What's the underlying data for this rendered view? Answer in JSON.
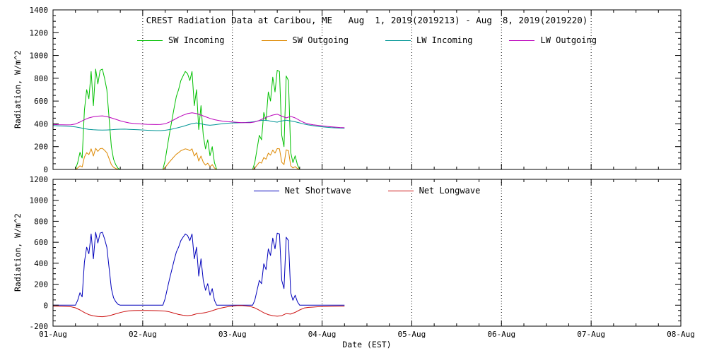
{
  "background": "#ffffff",
  "chart_data": [
    {
      "type": "line",
      "panel": "top",
      "title": "CREST Radiation Data at Caribou, ME   Aug  1, 2019(2019213) - Aug  8, 2019(2019220)",
      "ylabel": "Radiation, W/m^2",
      "ylim": [
        0,
        1400
      ],
      "ytick_interval": 200,
      "ytick_minor": 50,
      "xlim": [
        0,
        7
      ],
      "xtick_minor": 0.25,
      "x_unit": "days from 01-Aug-2019 00:00 EST",
      "x_tick_labels": [
        "01-Aug",
        "02-Aug",
        "03-Aug",
        "04-Aug",
        "05-Aug",
        "06-Aug",
        "07-Aug",
        "08-Aug"
      ],
      "grid": "vertical-dotted",
      "frame_color": "#000000",
      "legend_position": "top-center-inside",
      "series": [
        {
          "name": "SW Incoming",
          "color": "#00c000",
          "x_start": 0,
          "x_step": 0.025,
          "values": [
            0,
            0,
            0,
            0,
            0,
            0,
            0,
            0,
            0,
            0,
            0,
            60,
            150,
            100,
            520,
            700,
            620,
            860,
            560,
            880,
            750,
            870,
            880,
            800,
            700,
            450,
            200,
            90,
            40,
            10,
            0,
            0,
            0,
            0,
            0,
            0,
            0,
            0,
            0,
            0,
            0,
            0,
            0,
            0,
            0,
            0,
            0,
            0,
            0,
            0,
            80,
            200,
            320,
            430,
            540,
            640,
            700,
            780,
            820,
            860,
            840,
            780,
            860,
            560,
            700,
            350,
            560,
            300,
            180,
            260,
            120,
            200,
            60,
            0,
            0,
            0,
            0,
            0,
            0,
            0,
            0,
            0,
            0,
            0,
            0,
            0,
            0,
            0,
            0,
            0,
            60,
            180,
            300,
            260,
            500,
            430,
            680,
            600,
            810,
            680,
            870,
            860,
            300,
            200,
            820,
            780,
            150,
            60,
            120,
            40,
            0,
            0,
            0,
            0,
            0,
            0,
            0,
            0,
            0,
            0,
            0,
            0,
            0,
            0,
            0,
            0,
            0,
            0,
            0,
            0,
            0
          ]
        },
        {
          "name": "SW Outgoing",
          "color": "#dd8800",
          "x_start": 0,
          "x_step": 0.025,
          "values": [
            0,
            0,
            0,
            0,
            0,
            0,
            0,
            0,
            0,
            0,
            0,
            13,
            32,
            21,
            109,
            147,
            130,
            181,
            118,
            185,
            158,
            183,
            185,
            168,
            147,
            95,
            42,
            19,
            8,
            2,
            0,
            0,
            0,
            0,
            0,
            0,
            0,
            0,
            0,
            0,
            0,
            0,
            0,
            0,
            0,
            0,
            0,
            0,
            0,
            0,
            17,
            42,
            67,
            90,
            113,
            134,
            147,
            164,
            172,
            181,
            176,
            164,
            181,
            118,
            147,
            74,
            118,
            63,
            38,
            55,
            25,
            42,
            13,
            0,
            0,
            0,
            0,
            0,
            0,
            0,
            0,
            0,
            0,
            0,
            0,
            0,
            0,
            0,
            0,
            0,
            13,
            38,
            63,
            55,
            105,
            90,
            143,
            126,
            170,
            143,
            183,
            181,
            63,
            42,
            172,
            164,
            32,
            13,
            25,
            8,
            0,
            0,
            0,
            0,
            0,
            0,
            0,
            0,
            0,
            0,
            0,
            0,
            0,
            0,
            0,
            0,
            0,
            0,
            0,
            0,
            0
          ]
        },
        {
          "name": "LW Incoming",
          "color": "#009595",
          "x_start": 0,
          "x_step": 0.05,
          "values": [
            385,
            383,
            381,
            379,
            377,
            373,
            366,
            358,
            352,
            348,
            346,
            345,
            346,
            348,
            351,
            353,
            354,
            352,
            350,
            348,
            346,
            344,
            342,
            341,
            341,
            344,
            350,
            358,
            368,
            378,
            390,
            402,
            408,
            400,
            392,
            388,
            392,
            397,
            402,
            406,
            408,
            409,
            410,
            412,
            415,
            420,
            428,
            432,
            428,
            420,
            415,
            425,
            432,
            426,
            418,
            408,
            398,
            390,
            384,
            378,
            374,
            370,
            367,
            365,
            363,
            362
          ]
        },
        {
          "name": "LW Outgoing",
          "color": "#bb00bb",
          "x_start": 0,
          "x_step": 0.05,
          "values": [
            395,
            393,
            392,
            391,
            392,
            399,
            416,
            436,
            452,
            462,
            468,
            470,
            464,
            452,
            440,
            427,
            416,
            408,
            403,
            400,
            398,
            396,
            395,
            394,
            395,
            401,
            416,
            437,
            458,
            476,
            490,
            497,
            490,
            477,
            462,
            448,
            437,
            429,
            423,
            419,
            416,
            413,
            411,
            410,
            411,
            417,
            430,
            448,
            464,
            477,
            485,
            468,
            452,
            466,
            452,
            430,
            411,
            399,
            392,
            387,
            382,
            378,
            374,
            371,
            368,
            366
          ]
        }
      ]
    },
    {
      "type": "line",
      "panel": "bottom",
      "ylabel": "Radiation, W/m^2",
      "xlabel": "Date (EST)",
      "ylim": [
        -200,
        1200
      ],
      "ytick_interval": 200,
      "ytick_minor": 50,
      "xlim": [
        0,
        7
      ],
      "xtick_minor": 0.25,
      "x_unit": "days from 01-Aug-2019 00:00 EST",
      "x_tick_labels": [
        "01-Aug",
        "02-Aug",
        "03-Aug",
        "04-Aug",
        "05-Aug",
        "06-Aug",
        "07-Aug",
        "08-Aug"
      ],
      "grid": "vertical-dotted",
      "frame_color": "#000000",
      "legend_position": "top-center-inside",
      "series": [
        {
          "name": "Net Shortwave",
          "color": "#0000bb",
          "x_start": 0,
          "x_step": 0.025,
          "values": [
            0,
            0,
            0,
            0,
            0,
            0,
            0,
            0,
            0,
            0,
            0,
            47,
            119,
            79,
            411,
            553,
            490,
            679,
            442,
            695,
            593,
            687,
            695,
            632,
            553,
            356,
            158,
            71,
            32,
            8,
            0,
            0,
            0,
            0,
            0,
            0,
            0,
            0,
            0,
            0,
            0,
            0,
            0,
            0,
            0,
            0,
            0,
            0,
            0,
            0,
            63,
            158,
            253,
            340,
            427,
            506,
            553,
            616,
            648,
            679,
            664,
            616,
            679,
            442,
            553,
            277,
            442,
            237,
            142,
            205,
            95,
            158,
            47,
            0,
            0,
            0,
            0,
            0,
            0,
            0,
            0,
            0,
            0,
            0,
            0,
            0,
            0,
            0,
            0,
            0,
            47,
            142,
            237,
            205,
            395,
            340,
            537,
            474,
            640,
            537,
            687,
            679,
            237,
            158,
            648,
            616,
            119,
            47,
            95,
            32,
            0,
            0,
            0,
            0,
            0,
            0,
            0,
            0,
            0,
            0,
            0,
            0,
            0,
            0,
            0,
            0,
            0,
            0,
            0,
            0,
            0
          ]
        },
        {
          "name": "Net Longwave",
          "color": "#cc1111",
          "x_start": 0,
          "x_step": 0.05,
          "values": [
            -10,
            -10,
            -11,
            -12,
            -15,
            -25,
            -45,
            -70,
            -90,
            -102,
            -108,
            -110,
            -105,
            -95,
            -82,
            -70,
            -60,
            -54,
            -51,
            -50,
            -50,
            -50,
            -51,
            -52,
            -53,
            -56,
            -64,
            -76,
            -88,
            -96,
            -100,
            -95,
            -82,
            -77,
            -70,
            -60,
            -45,
            -32,
            -22,
            -14,
            -8,
            -4,
            -3,
            -6,
            -13,
            -26,
            -48,
            -72,
            -90,
            -100,
            -105,
            -100,
            -80,
            -85,
            -68,
            -45,
            -27,
            -21,
            -18,
            -15,
            -13,
            -12,
            -11,
            -10,
            -9,
            -9
          ]
        }
      ]
    }
  ]
}
